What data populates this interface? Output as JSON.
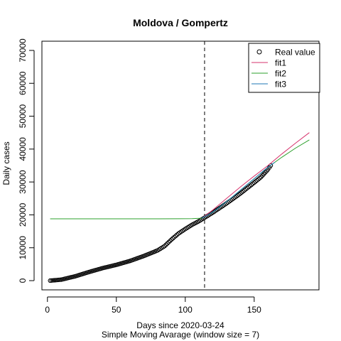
{
  "chart_data": {
    "type": "line",
    "title": "Moldova / Gompertz",
    "xlabel": "Days since 2020-03-24",
    "subtitle": "Simple Moving Avarage (window size = 7)",
    "ylabel": "Daily cases",
    "xlim": [
      -4,
      197
    ],
    "ylim": [
      -2800,
      72800
    ],
    "x_ticks": [
      0,
      50,
      100,
      150
    ],
    "y_ticks": [
      0,
      10000,
      20000,
      30000,
      40000,
      50000,
      60000,
      70000
    ],
    "grid": false,
    "legend_position": "top-right",
    "vline": {
      "x": 114,
      "style": "dashed",
      "color": "#000000"
    },
    "series": [
      {
        "name": "Real value",
        "kind": "points",
        "marker": "open-circle",
        "color": "#000000",
        "x_start": 2,
        "x_end": 162,
        "knots_x": [
          2,
          10,
          20,
          30,
          40,
          50,
          60,
          70,
          80,
          85,
          90,
          95,
          100,
          105,
          110,
          115,
          120,
          130,
          140,
          150,
          155,
          160,
          162
        ],
        "knots_y": [
          0,
          300,
          1300,
          2600,
          3800,
          4800,
          6000,
          7500,
          9200,
          10500,
          12500,
          14300,
          15700,
          17000,
          18100,
          19400,
          20700,
          23500,
          26500,
          29800,
          31500,
          33800,
          35000
        ]
      },
      {
        "name": "fit1",
        "kind": "line",
        "color": "#d6336c",
        "knots_x": [
          112,
          120,
          130,
          140,
          150,
          160,
          170,
          180,
          190
        ],
        "knots_y": [
          19000,
          21500,
          25000,
          28500,
          31800,
          35000,
          38500,
          41800,
          45000
        ]
      },
      {
        "name": "fit2",
        "kind": "line",
        "color": "#2ca02c",
        "knots_x": [
          2,
          40,
          80,
          105,
          112,
          120,
          130,
          140,
          150,
          160,
          170,
          180,
          190
        ],
        "knots_y": [
          18800,
          18800,
          18800,
          18850,
          19000,
          20800,
          24000,
          27500,
          31000,
          34500,
          37500,
          40300,
          42800
        ]
      },
      {
        "name": "fit3",
        "kind": "line",
        "color": "#1f77b4",
        "knots_x": [
          112,
          120,
          130,
          140,
          150,
          160,
          165
        ],
        "knots_y": [
          19000,
          20800,
          24000,
          27500,
          31000,
          34500,
          36000
        ]
      }
    ]
  }
}
